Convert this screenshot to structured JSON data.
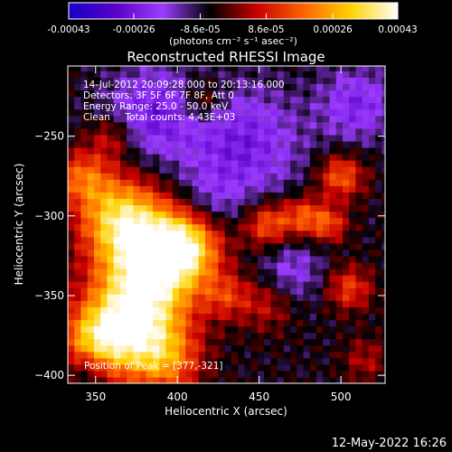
{
  "colorbar": {
    "tick_labels": [
      "-0.00043",
      "-0.00026",
      "-8.6e-05",
      "8.6e-05",
      "0.00026",
      "0.00043"
    ],
    "tick_values": [
      -0.00043,
      -0.00026,
      -8.6e-05,
      8.6e-05,
      0.00026,
      0.00043
    ],
    "range": [
      -0.00043,
      0.00043
    ],
    "unit_label": "(photons cm⁻² s⁻¹ asec⁻²)",
    "colors": [
      "#1400c8",
      "#5a00c8",
      "#9b3cff",
      "#000000",
      "#c80000",
      "#ff6400",
      "#ffd200",
      "#ffffff"
    ]
  },
  "chart_data": {
    "type": "heatmap",
    "title": "Reconstructed RHESSI Image",
    "xlabel": "Heliocentric X (arcsec)",
    "ylabel": "Heliocentric Y (arcsec)",
    "xlim": [
      333,
      527
    ],
    "ylim": [
      -405,
      -206
    ],
    "x_ticks": [
      350,
      400,
      450,
      500
    ],
    "x_tick_labels": [
      "350",
      "400",
      "450",
      "500"
    ],
    "y_ticks": [
      -250,
      -300,
      -350,
      -400
    ],
    "y_tick_labels": [
      "−250",
      "−300",
      "−350",
      "−400"
    ],
    "peak": [
      377,
      -321
    ],
    "annotations": [
      "14-Jul-2012 20:09:28.000 to 20:13:16.000",
      "Detectors: 3F 5F 6F 7F 8F, Att 0",
      "Energy Range: 25.0 - 50.0 keV",
      "Clean     Total counts: 4.43E+03"
    ],
    "peak_label": "Position of Peak = [377,-321]"
  },
  "footer": {
    "date": "12-May-2022 16:26"
  }
}
